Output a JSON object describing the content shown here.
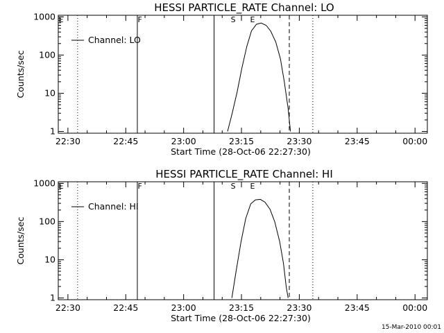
{
  "chart_data": [
    {
      "type": "line",
      "title": "HESSI PARTICLE_RATE Channel: LO",
      "xlabel": "Start Time (28-Oct-06 22:27:30)",
      "ylabel": "Counts/sec",
      "x_tick_labels": [
        "22:30",
        "22:45",
        "23:00",
        "23:15",
        "23:30",
        "23:45",
        "00:00"
      ],
      "y_tick_labels": [
        "1",
        "10",
        "100",
        "1000"
      ],
      "xlim": [
        "22:27:30",
        "00:05"
      ],
      "ylim": [
        0.9,
        1100
      ],
      "y_scale": "log",
      "legend": {
        "placement": "top-left",
        "entries": [
          "Channel: LO"
        ]
      },
      "series": [
        {
          "name": "Channel: LO",
          "x_minutes": [
            38.9,
            40.1,
            41.4,
            42.6,
            43.9,
            45.1,
            46.4,
            47.6,
            48.9,
            50.1,
            51.4,
            52.6,
            53.6,
            54.6,
            55.2
          ],
          "values": [
            1.0,
            3.0,
            11.0,
            45.0,
            170.0,
            430.0,
            640.0,
            690.0,
            600.0,
            420.0,
            220.0,
            80.0,
            20.0,
            4.0,
            1.0
          ]
        }
      ],
      "markers": [
        {
          "label": "F",
          "x_minutes": 15.8,
          "style": "solid"
        },
        {
          "label": "S",
          "x_minutes": 40.0,
          "style": "dashed"
        },
        {
          "label": "E",
          "x_minutes": 45.0,
          "style": "dotted"
        }
      ],
      "vertical_lines": [
        {
          "x_minutes": 0.0,
          "style": "dotted"
        },
        {
          "x_minutes": 15.5,
          "style": "solid"
        },
        {
          "x_minutes": 35.4,
          "style": "solid"
        },
        {
          "x_minutes": 54.9,
          "style": "dashed"
        },
        {
          "x_minutes": 61.0,
          "style": "dotted"
        }
      ]
    },
    {
      "type": "line",
      "title": "HESSI PARTICLE_RATE Channel: HI",
      "xlabel": "Start Time (28-Oct-06 22:27:30)",
      "ylabel": "Counts/sec",
      "x_tick_labels": [
        "22:30",
        "22:45",
        "23:00",
        "23:15",
        "23:30",
        "23:45",
        "00:00"
      ],
      "y_tick_labels": [
        "1",
        "10",
        "100",
        "1000"
      ],
      "xlim": [
        "22:27:30",
        "00:05"
      ],
      "ylim": [
        0.9,
        1100
      ],
      "y_scale": "log",
      "legend": {
        "placement": "top-left",
        "entries": [
          "Channel: HI"
        ]
      },
      "series": [
        {
          "name": "Channel: HI",
          "x_minutes": [
            40.0,
            41.1,
            42.4,
            43.6,
            44.9,
            46.1,
            47.4,
            48.6,
            49.9,
            51.1,
            52.4,
            53.4,
            54.1,
            54.6
          ],
          "values": [
            1.0,
            5.0,
            30.0,
            120.0,
            290.0,
            370.0,
            380.0,
            320.0,
            210.0,
            100.0,
            30.0,
            8.0,
            2.0,
            1.0
          ]
        }
      ],
      "markers": [
        {
          "label": "F",
          "x_minutes": 15.8,
          "style": "solid"
        },
        {
          "label": "S",
          "x_minutes": 40.0,
          "style": "dashed"
        },
        {
          "label": "E",
          "x_minutes": 45.0,
          "style": "dotted"
        }
      ],
      "vertical_lines": [
        {
          "x_minutes": 0.0,
          "style": "dotted"
        },
        {
          "x_minutes": 15.5,
          "style": "solid"
        },
        {
          "x_minutes": 35.4,
          "style": "solid"
        },
        {
          "x_minutes": 54.9,
          "style": "dashed"
        },
        {
          "x_minutes": 61.0,
          "style": "dotted"
        }
      ]
    }
  ],
  "footer": {
    "timestamp": "15-Mar-2010 00:01"
  }
}
